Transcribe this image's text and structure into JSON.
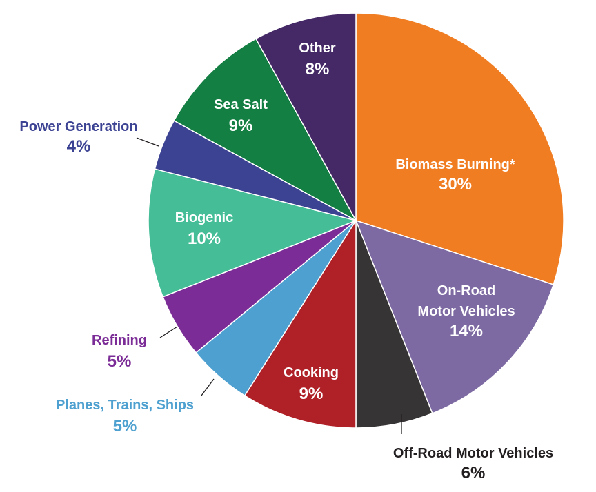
{
  "chart_data": {
    "type": "pie",
    "slices": [
      {
        "key": "biomass",
        "label_lines": [
          "Biomass Burning*"
        ],
        "value": 30,
        "value_label": "30%",
        "color": "#F07D22",
        "label_color": "#ffffff",
        "placement": "inside"
      },
      {
        "key": "onroad",
        "label_lines": [
          "On-Road",
          "Motor Vehicles"
        ],
        "value": 14,
        "value_label": "14%",
        "color": "#7D6AA2",
        "label_color": "#ffffff",
        "placement": "inside"
      },
      {
        "key": "offroad",
        "label_lines": [
          "Off-Road Motor Vehicles"
        ],
        "value": 6,
        "value_label": "6%",
        "color": "#373435",
        "label_color": "#231f20",
        "placement": "outside-bottom-right"
      },
      {
        "key": "cooking",
        "label_lines": [
          "Cooking"
        ],
        "value": 9,
        "value_label": "9%",
        "color": "#AF2027",
        "label_color": "#ffffff",
        "placement": "inside"
      },
      {
        "key": "planes",
        "label_lines": [
          "Planes, Trains, Ships"
        ],
        "value": 5,
        "value_label": "5%",
        "color": "#4DA0CF",
        "label_color": "#4DA0CF",
        "placement": "outside-bottom-left"
      },
      {
        "key": "refining",
        "label_lines": [
          "Refining"
        ],
        "value": 5,
        "value_label": "5%",
        "color": "#7B2C96",
        "label_color": "#7B2C96",
        "placement": "outside-left"
      },
      {
        "key": "biogenic",
        "label_lines": [
          "Biogenic"
        ],
        "value": 10,
        "value_label": "10%",
        "color": "#45BE98",
        "label_color": "#ffffff",
        "placement": "inside"
      },
      {
        "key": "power",
        "label_lines": [
          "Power Generation"
        ],
        "value": 4,
        "value_label": "4%",
        "color": "#3D4393",
        "label_color": "#3D4393",
        "placement": "outside-top-left"
      },
      {
        "key": "seasalt",
        "label_lines": [
          "Sea Salt"
        ],
        "value": 9,
        "value_label": "9%",
        "color": "#137F42",
        "label_color": "#ffffff",
        "placement": "inside"
      },
      {
        "key": "other",
        "label_lines": [
          "Other"
        ],
        "value": 8,
        "value_label": "8%",
        "color": "#452967",
        "label_color": "#ffffff",
        "placement": "inside"
      }
    ]
  }
}
